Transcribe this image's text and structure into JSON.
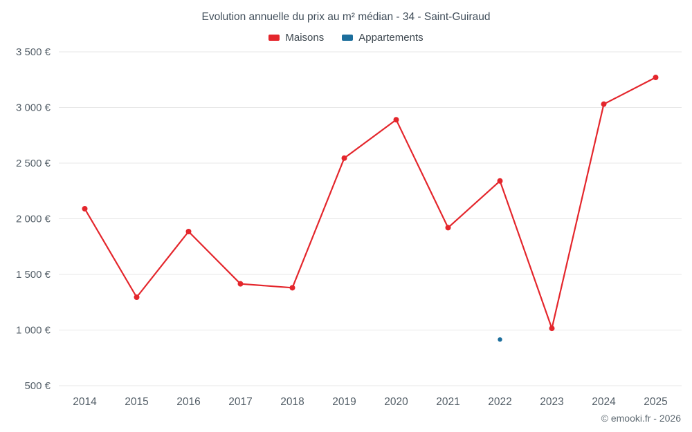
{
  "title": "Evolution annuelle du prix au m² médian - 34 - Saint-Guiraud",
  "footer": "© emooki.fr - 2026",
  "legend": [
    {
      "label": "Maisons",
      "color": "#e4262c"
    },
    {
      "label": "Appartements",
      "color": "#1c6e9c"
    }
  ],
  "chart_data": {
    "type": "line",
    "title": "Evolution annuelle du prix au m² médian - 34 - Saint-Guiraud",
    "categories": [
      "2014",
      "2015",
      "2016",
      "2017",
      "2018",
      "2019",
      "2020",
      "2021",
      "2022",
      "2023",
      "2024",
      "2025"
    ],
    "series": [
      {
        "name": "Maisons",
        "color": "#e4262c",
        "values": [
          2090,
          1295,
          1885,
          1415,
          1380,
          2545,
          2890,
          1920,
          2340,
          1015,
          3030,
          3270
        ]
      },
      {
        "name": "Appartements",
        "color": "#1c6e9c",
        "values": [
          null,
          null,
          null,
          null,
          null,
          null,
          null,
          null,
          915,
          null,
          null,
          null
        ]
      }
    ],
    "ylim": [
      500,
      3500
    ],
    "y_ticks": [
      {
        "value": 500,
        "label": "500 €"
      },
      {
        "value": 1000,
        "label": "1 000 €"
      },
      {
        "value": 1500,
        "label": "1 500 €"
      },
      {
        "value": 2000,
        "label": "2 000 €"
      },
      {
        "value": 2500,
        "label": "2 500 €"
      },
      {
        "value": 3000,
        "label": "3 000 €"
      },
      {
        "value": 3500,
        "label": "3 500 €"
      }
    ],
    "grid": "horizontal",
    "legend_position": "top",
    "xlabel": "",
    "ylabel": ""
  },
  "colors": {
    "grid": "#e7e7e7",
    "tick_text": "#545f68",
    "title_text": "#414e5a"
  }
}
